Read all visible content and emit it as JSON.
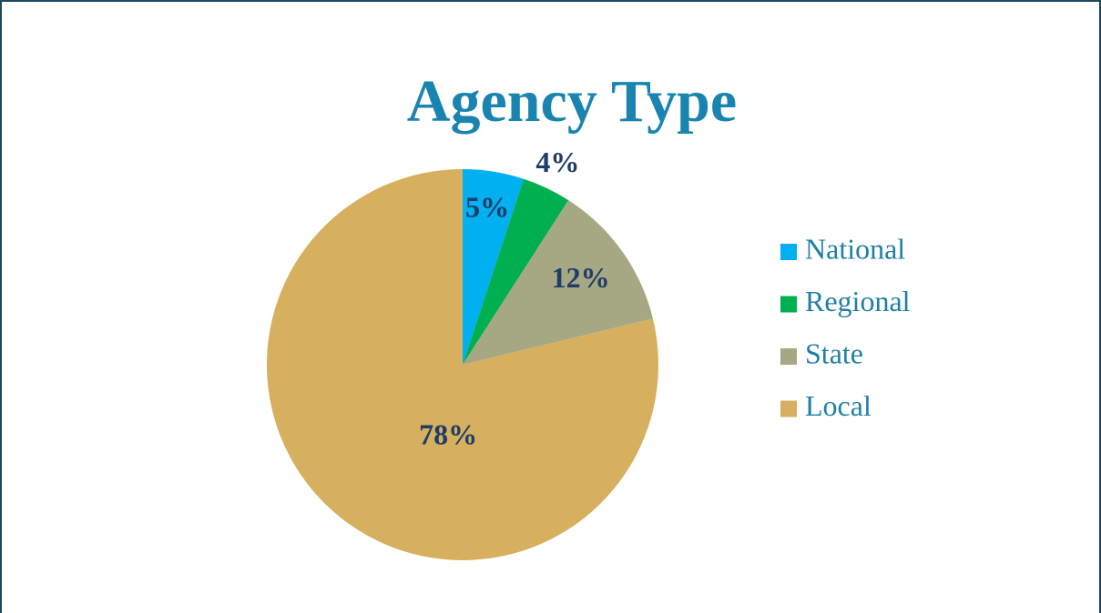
{
  "chart_data": {
    "type": "pie",
    "title": "Agency Type",
    "categories": [
      "National",
      "Regional",
      "State",
      "Local"
    ],
    "values": [
      5,
      4,
      12,
      78
    ],
    "value_labels": [
      "5%",
      "4%",
      "12%",
      "78%"
    ],
    "colors": [
      "#00b0f0",
      "#00b050",
      "#a5a882",
      "#d6b05e"
    ],
    "legend": "right"
  }
}
